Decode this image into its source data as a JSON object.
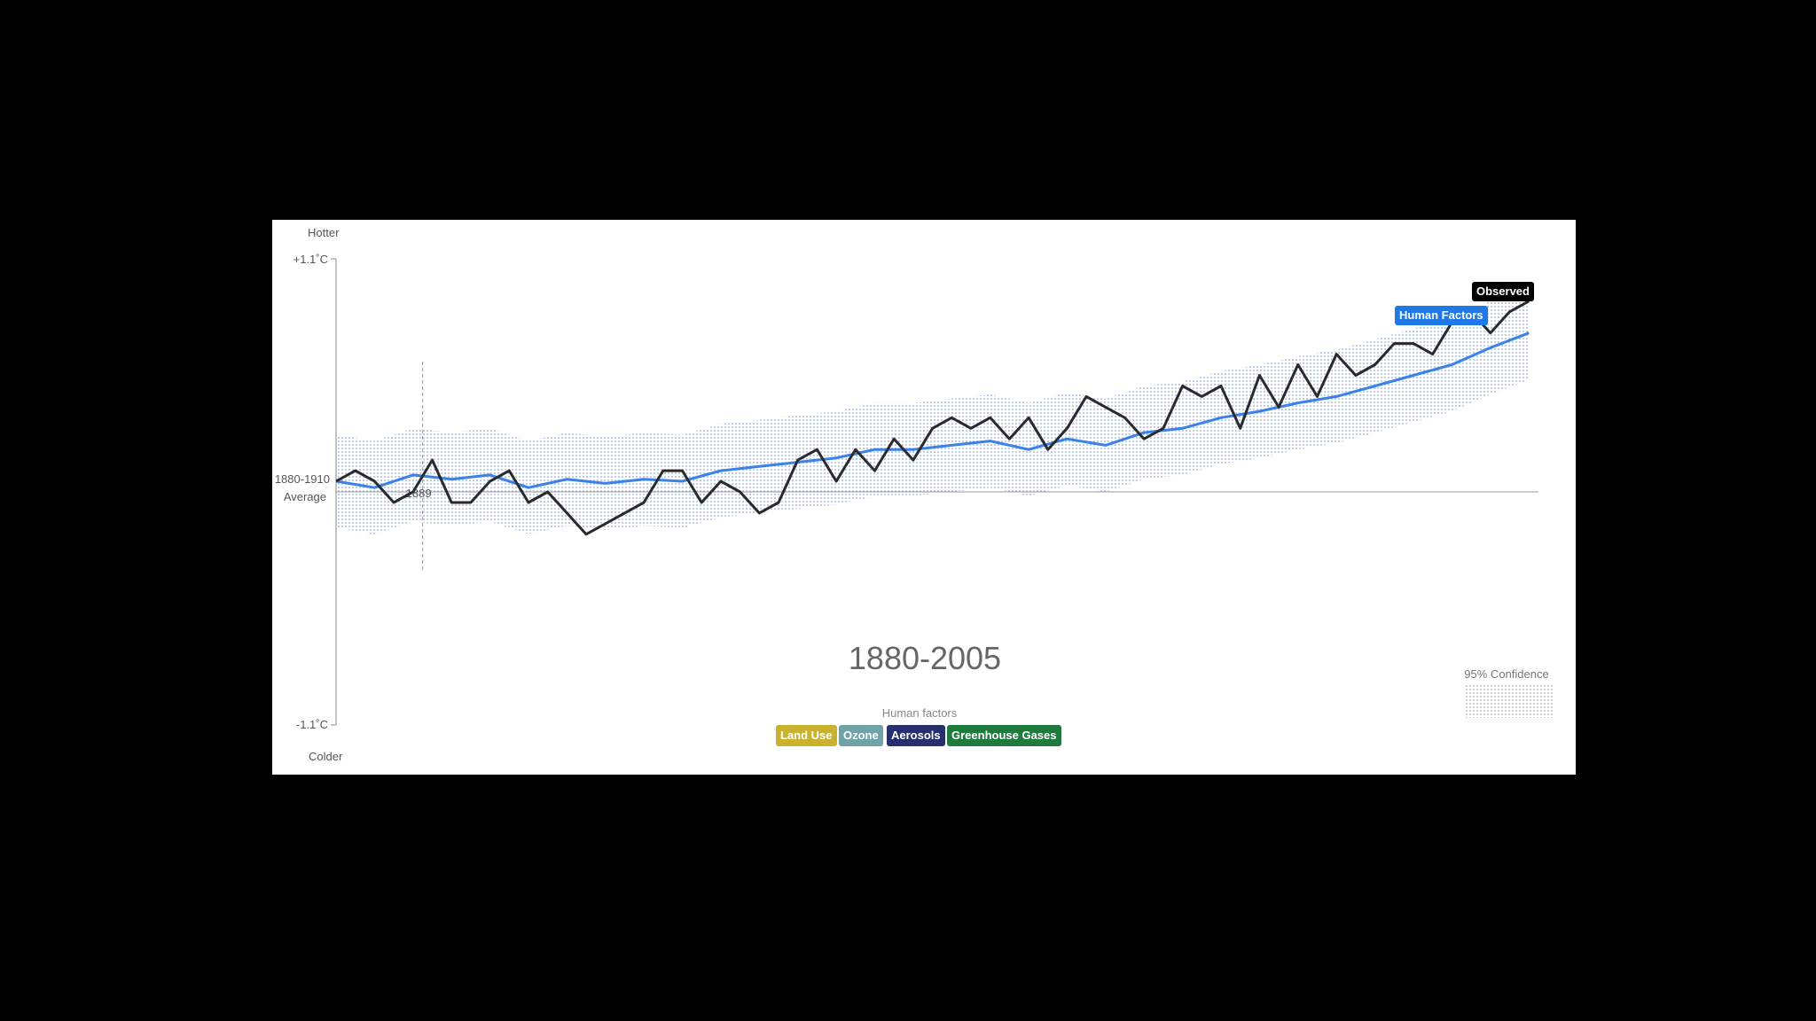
{
  "chart_data": {
    "type": "line",
    "axis": {
      "top_label": "Hotter",
      "bottom_label": "Colder",
      "ymax_label": "+1.1˚C",
      "ymin_label": "-1.1˚C",
      "baseline_label_1": "1880-1910",
      "baseline_label_2": "Average",
      "ylim": [
        -1.1,
        1.1
      ]
    },
    "xlim": [
      1880,
      2005
    ],
    "year_range_label": "1880-2005",
    "hover_year": "1889",
    "series": [
      {
        "name": "Observed",
        "color": "#2a2a2a",
        "x": [
          1880,
          1882,
          1884,
          1886,
          1888,
          1890,
          1892,
          1894,
          1896,
          1898,
          1900,
          1902,
          1904,
          1906,
          1908,
          1910,
          1912,
          1914,
          1916,
          1918,
          1920,
          1922,
          1924,
          1926,
          1928,
          1930,
          1932,
          1934,
          1936,
          1938,
          1940,
          1942,
          1944,
          1946,
          1948,
          1950,
          1952,
          1954,
          1956,
          1958,
          1960,
          1962,
          1964,
          1966,
          1968,
          1970,
          1972,
          1974,
          1976,
          1978,
          1980,
          1982,
          1984,
          1986,
          1988,
          1990,
          1992,
          1994,
          1996,
          1998,
          2000,
          2002,
          2004
        ],
        "y": [
          0.05,
          0.1,
          0.05,
          -0.05,
          0.0,
          0.15,
          -0.05,
          -0.05,
          0.05,
          0.1,
          -0.05,
          0.0,
          -0.1,
          -0.2,
          -0.15,
          -0.1,
          -0.05,
          0.1,
          0.1,
          -0.05,
          0.05,
          0.0,
          -0.1,
          -0.05,
          0.15,
          0.2,
          0.05,
          0.2,
          0.1,
          0.25,
          0.15,
          0.3,
          0.35,
          0.3,
          0.35,
          0.25,
          0.35,
          0.2,
          0.3,
          0.45,
          0.4,
          0.35,
          0.25,
          0.3,
          0.5,
          0.45,
          0.5,
          0.3,
          0.55,
          0.4,
          0.6,
          0.45,
          0.65,
          0.55,
          0.6,
          0.7,
          0.7,
          0.65,
          0.8,
          0.85,
          0.75,
          0.85,
          0.9
        ]
      },
      {
        "name": "Human Factors",
        "color": "#3b82e8",
        "x": [
          1880,
          1884,
          1888,
          1892,
          1896,
          1900,
          1904,
          1908,
          1912,
          1916,
          1920,
          1924,
          1928,
          1932,
          1936,
          1940,
          1944,
          1948,
          1952,
          1956,
          1960,
          1964,
          1968,
          1972,
          1976,
          1980,
          1984,
          1988,
          1992,
          1996,
          2000,
          2004
        ],
        "y": [
          0.05,
          0.02,
          0.08,
          0.06,
          0.08,
          0.02,
          0.06,
          0.04,
          0.06,
          0.05,
          0.1,
          0.12,
          0.14,
          0.16,
          0.2,
          0.2,
          0.22,
          0.24,
          0.2,
          0.25,
          0.22,
          0.28,
          0.3,
          0.35,
          0.38,
          0.42,
          0.45,
          0.5,
          0.55,
          0.6,
          0.68,
          0.75
        ]
      }
    ],
    "confidence_label": "95% Confidence"
  },
  "legend": {
    "title": "Human factors",
    "items": [
      {
        "label": "Land Use",
        "color": "#c8b22e"
      },
      {
        "label": "Ozone",
        "color": "#6fa3a8"
      },
      {
        "label": "Aerosols",
        "color": "#27306e"
      },
      {
        "label": "Greenhouse Gases",
        "color": "#1f7a3e"
      }
    ]
  },
  "tags": {
    "observed": "Observed",
    "human_factors": "Human Factors"
  },
  "colors": {
    "observed": "#000000",
    "human_factors": "#1f7ae8",
    "band": "#9fb4e6"
  }
}
